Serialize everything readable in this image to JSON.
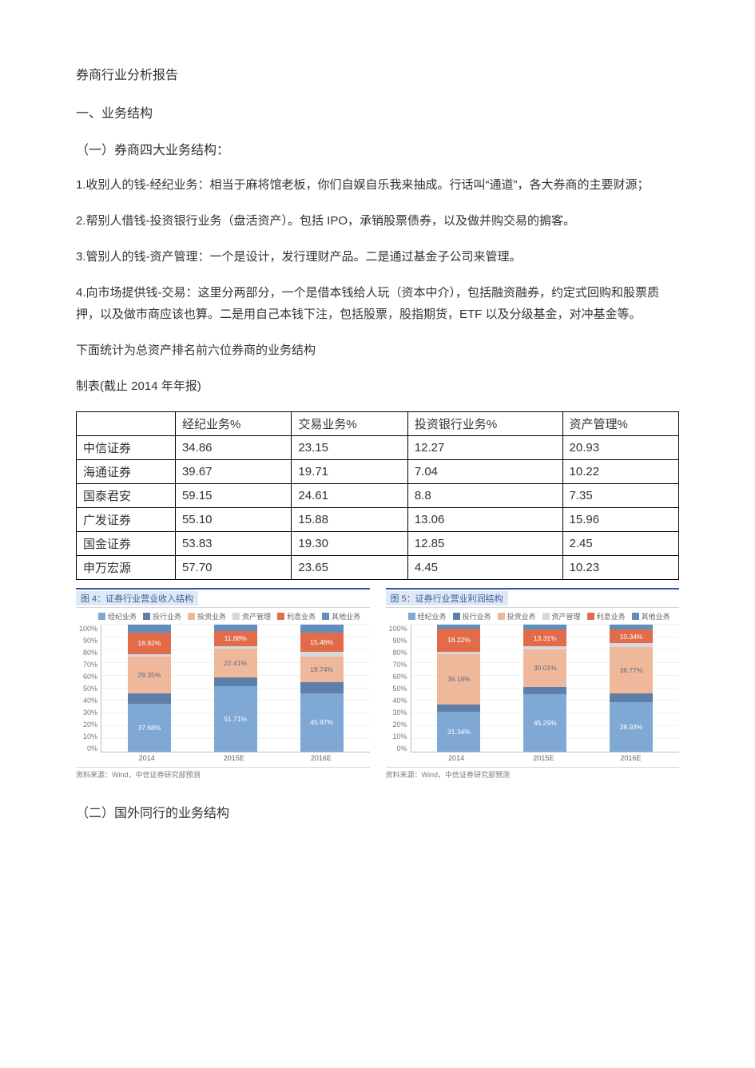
{
  "doc": {
    "title": "券商行业分析报告",
    "section1": "一、业务结构",
    "sub1": "（一）券商四大业务结构：",
    "p1": "1.收别人的钱-经纪业务：相当于麻将馆老板，你们自娱自乐我来抽成。行话叫“通道”，各大券商的主要财源；",
    "p2": "2.帮别人借钱-投资银行业务（盘活资产）。包括 IPO，承销股票债券，以及做并购交易的掮客。",
    "p3": "3.管别人的钱-资产管理：一个是设计，发行理财产品。二是通过基金子公司来管理。",
    "p4": "4.向市场提供钱-交易：这里分两部分，一个是借本钱给人玩（资本中介），包括融资融券，约定式回购和股票质押，以及做市商应该也算。二是用自己本钱下注，包括股票，股指期货，ETF 以及分级基金，对冲基金等。",
    "p5": "下面统计为总资产排名前六位券商的业务结构",
    "p6": "制表(截止 2014 年年报)",
    "sub2": "（二）国外同行的业务结构"
  },
  "table": {
    "columns": [
      "",
      "经纪业务%",
      "交易业务%",
      "投资银行业务%",
      "资产管理%"
    ],
    "rows": [
      [
        "中信证券",
        "34.86",
        "23.15",
        "12.27",
        "20.93"
      ],
      [
        "海通证券",
        "39.67",
        "19.71",
        "7.04",
        "10.22"
      ],
      [
        "国泰君安",
        "59.15",
        "24.61",
        "8.8",
        "7.35"
      ],
      [
        "广发证券",
        "55.10",
        "15.88",
        "13.06",
        "15.96"
      ],
      [
        "国金证券",
        "53.83",
        "19.30",
        "12.85",
        "2.45"
      ],
      [
        "申万宏源",
        "57.70",
        "23.65",
        "4.45",
        "10.23"
      ]
    ]
  },
  "charts": {
    "legend_labels": [
      "经纪业务",
      "投行业务",
      "投资业务",
      "资产管理",
      "利息业务",
      "其他业务"
    ],
    "colors": {
      "经纪业务": "#7fa8d4",
      "投行业务": "#5d7fa8",
      "投资业务": "#f0b89a",
      "资产管理": "#d6d8db",
      "利息业务": "#e26b4a",
      "其他业务": "#608fbd",
      "grid": "#eef1f5",
      "axis": "#bbbbbb",
      "title_bg": "#dfe9f5",
      "title_fg": "#3a5f9a",
      "border_top": "#2a5a9a"
    },
    "y_ticks": [
      "100%",
      "90%",
      "80%",
      "70%",
      "60%",
      "50%",
      "40%",
      "30%",
      "20%",
      "10%",
      "0%"
    ],
    "source": "资料来源：Wind，中信证券研究部预测",
    "left": {
      "title": "图 4：证券行业营业收入结构",
      "x": [
        "2014",
        "2015E",
        "2016E"
      ],
      "series_order": [
        "经纪业务",
        "投行业务",
        "投资业务",
        "资产管理",
        "利息业务",
        "其他业务"
      ],
      "stacks": [
        {
          "经纪业务": 37.68,
          "投行业务": 8.0,
          "投资业务": 29.35,
          "资产管理": 2.0,
          "利息业务": 16.92,
          "其他业务": 6.05
        },
        {
          "经纪业务": 51.71,
          "投行业务": 7.0,
          "投资业务": 22.41,
          "资产管理": 2.0,
          "利息业务": 11.88,
          "其他业务": 5.0
        },
        {
          "经纪业务": 45.97,
          "投行业务": 9.0,
          "投资业务": 19.74,
          "资产管理": 3.83,
          "利息业务": 15.46,
          "其他业务": 6.0
        }
      ],
      "labels_shown": [
        {
          "经纪业务": "37.68%",
          "投资业务": "29.35%",
          "利息业务": "16.92%"
        },
        {
          "经纪业务": "51.71%",
          "投资业务": "22.41%",
          "利息业务": "11.88%"
        },
        {
          "经纪业务": "45.97%",
          "投资业务": "19.74%",
          "利息业务": "15.46%"
        }
      ]
    },
    "right": {
      "title": "图 5：证券行业营业利润结构",
      "x": [
        "2014",
        "2015E",
        "2016E"
      ],
      "series_order": [
        "经纪业务",
        "投行业务",
        "投资业务",
        "资产管理",
        "利息业务",
        "其他业务"
      ],
      "stacks": [
        {
          "经纪业务": 31.34,
          "投行业务": 6.0,
          "投资业务": 39.19,
          "资产管理": 2.2,
          "利息业务": 18.22,
          "其他业务": 3.05
        },
        {
          "经纪业务": 45.29,
          "投行业务": 5.5,
          "投资业务": 30.01,
          "资产管理": 2.0,
          "利息业务": 13.31,
          "其他业务": 3.89
        },
        {
          "经纪业务": 38.93,
          "投行业务": 7.0,
          "投资业务": 36.77,
          "资产管理": 3.0,
          "利息业务": 10.34,
          "其他业务": 3.96
        }
      ],
      "labels_shown": [
        {
          "经纪业务": "31.34%",
          "投资业务": "39.19%",
          "利息业务": "18.22%"
        },
        {
          "经纪业务": "45.29%",
          "投资业务": "30.01%",
          "利息业务": "13.31%"
        },
        {
          "经纪业务": "38.93%",
          "投资业务": "36.77%",
          "利息业务": "10.34%"
        }
      ]
    }
  }
}
